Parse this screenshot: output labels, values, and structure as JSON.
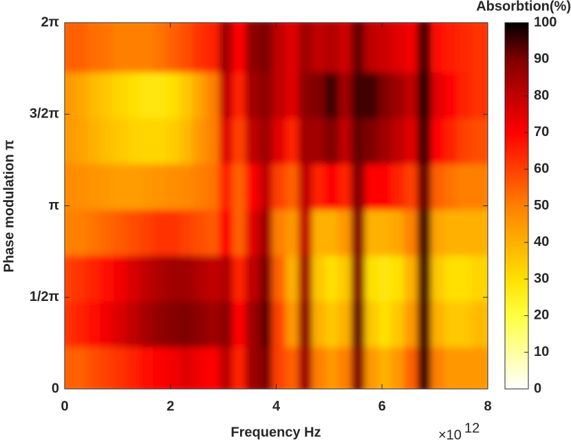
{
  "chart_data": {
    "type": "heatmap",
    "xlabel": "Frequency Hz",
    "ylabel": "Phase modulation π",
    "x_multiplier": {
      "base": "×10",
      "exponent": "12"
    },
    "colorbar_label": "Absorbtion(%)",
    "xlim": [
      0,
      8
    ],
    "xticks": [
      0,
      2,
      4,
      6,
      8
    ],
    "ylim": [
      0,
      2
    ],
    "yticks": [
      0,
      {
        "value": 0.5,
        "label": "1/2π"
      },
      {
        "value": 1,
        "label": "π"
      },
      {
        "value": 1.5,
        "label": "3/2π"
      },
      {
        "value": 2,
        "label": "2π"
      }
    ],
    "clim": [
      0,
      100
    ],
    "cticks": [
      0,
      10,
      20,
      30,
      40,
      50,
      60,
      70,
      80,
      90,
      100
    ],
    "colormap": [
      "#ffffff",
      "#ffffa0",
      "#ffff40",
      "#ffe000",
      "#ffb000",
      "#ff8000",
      "#ff4000",
      "#ff0000",
      "#c00000",
      "#800000",
      "#000000"
    ],
    "x": [
      0.125,
      0.375,
      0.625,
      0.875,
      1.125,
      1.375,
      1.625,
      1.875,
      2.125,
      2.375,
      2.625,
      2.875,
      3.125,
      3.375,
      3.625,
      3.875,
      4.125,
      4.375,
      4.625,
      4.875,
      5.125,
      5.375,
      5.625,
      5.875,
      6.125,
      6.375,
      6.625,
      6.875,
      7.125,
      7.375,
      7.625,
      7.875
    ],
    "y": [
      0.125,
      0.375,
      0.625,
      0.875,
      1.125,
      1.375,
      1.625,
      1.875
    ],
    "z": [
      [
        55,
        55,
        58,
        60,
        62,
        65,
        68,
        70,
        72,
        75,
        72,
        70,
        80,
        65,
        85,
        90,
        60,
        55,
        85,
        50,
        45,
        50,
        90,
        45,
        40,
        45,
        55,
        95,
        50,
        45,
        45,
        45
      ],
      [
        62,
        65,
        68,
        72,
        76,
        80,
        84,
        87,
        89,
        90,
        88,
        85,
        88,
        70,
        85,
        92,
        60,
        45,
        88,
        40,
        35,
        40,
        92,
        35,
        30,
        35,
        45,
        95,
        40,
        35,
        35,
        38
      ],
      [
        60,
        62,
        65,
        68,
        72,
        76,
        80,
        83,
        85,
        85,
        82,
        80,
        82,
        65,
        80,
        90,
        55,
        40,
        85,
        35,
        30,
        35,
        90,
        30,
        28,
        30,
        40,
        95,
        35,
        30,
        30,
        32
      ],
      [
        50,
        50,
        52,
        54,
        56,
        58,
        60,
        62,
        62,
        60,
        58,
        56,
        70,
        55,
        75,
        85,
        50,
        45,
        80,
        40,
        40,
        45,
        90,
        40,
        40,
        42,
        50,
        95,
        42,
        40,
        40,
        40
      ],
      [
        48,
        47,
        46,
        45,
        44,
        44,
        45,
        46,
        47,
        48,
        50,
        52,
        65,
        55,
        70,
        80,
        60,
        55,
        80,
        65,
        70,
        65,
        90,
        70,
        70,
        65,
        60,
        92,
        55,
        52,
        50,
        50
      ],
      [
        45,
        43,
        40,
        37,
        35,
        33,
        32,
        32,
        34,
        38,
        45,
        50,
        75,
        60,
        80,
        85,
        75,
        65,
        85,
        85,
        90,
        80,
        92,
        90,
        85,
        80,
        75,
        95,
        70,
        65,
        60,
        58
      ],
      [
        45,
        42,
        38,
        35,
        32,
        30,
        28,
        28,
        30,
        35,
        42,
        50,
        80,
        65,
        85,
        88,
        80,
        75,
        88,
        90,
        95,
        85,
        95,
        95,
        90,
        85,
        80,
        97,
        75,
        70,
        65,
        62
      ],
      [
        55,
        55,
        53,
        52,
        50,
        50,
        50,
        52,
        55,
        58,
        62,
        65,
        85,
        70,
        88,
        90,
        80,
        75,
        85,
        80,
        82,
        78,
        92,
        80,
        78,
        75,
        72,
        95,
        68,
        66,
        64,
        62
      ]
    ]
  }
}
